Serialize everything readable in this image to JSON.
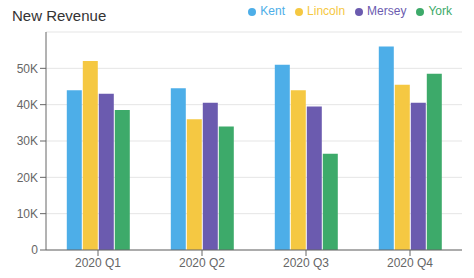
{
  "chart_data": {
    "type": "bar",
    "title": "New Revenue",
    "categories": [
      "2020 Q1",
      "2020 Q2",
      "2020 Q3",
      "2020 Q4"
    ],
    "series": [
      {
        "name": "Kent",
        "color": "#4DAEE8",
        "values": [
          44000,
          44500,
          51000,
          56000
        ]
      },
      {
        "name": "Lincoln",
        "color": "#F5C842",
        "values": [
          52000,
          36000,
          44000,
          45500
        ]
      },
      {
        "name": "Mersey",
        "color": "#6B5BAF",
        "values": [
          43000,
          40500,
          39500,
          40500
        ]
      },
      {
        "name": "York",
        "color": "#3DAA6A",
        "values": [
          38500,
          34000,
          26500,
          48500
        ]
      }
    ],
    "ylim": [
      0,
      60000
    ],
    "yticks": [
      0,
      {
        "value": 10000,
        "label": "10K"
      },
      {
        "value": 20000,
        "label": "20K"
      },
      {
        "value": 30000,
        "label": "30K"
      },
      {
        "value": 40000,
        "label": "40K"
      },
      {
        "value": 50000,
        "label": "50K"
      }
    ],
    "grid": true,
    "legend": "top-right"
  }
}
